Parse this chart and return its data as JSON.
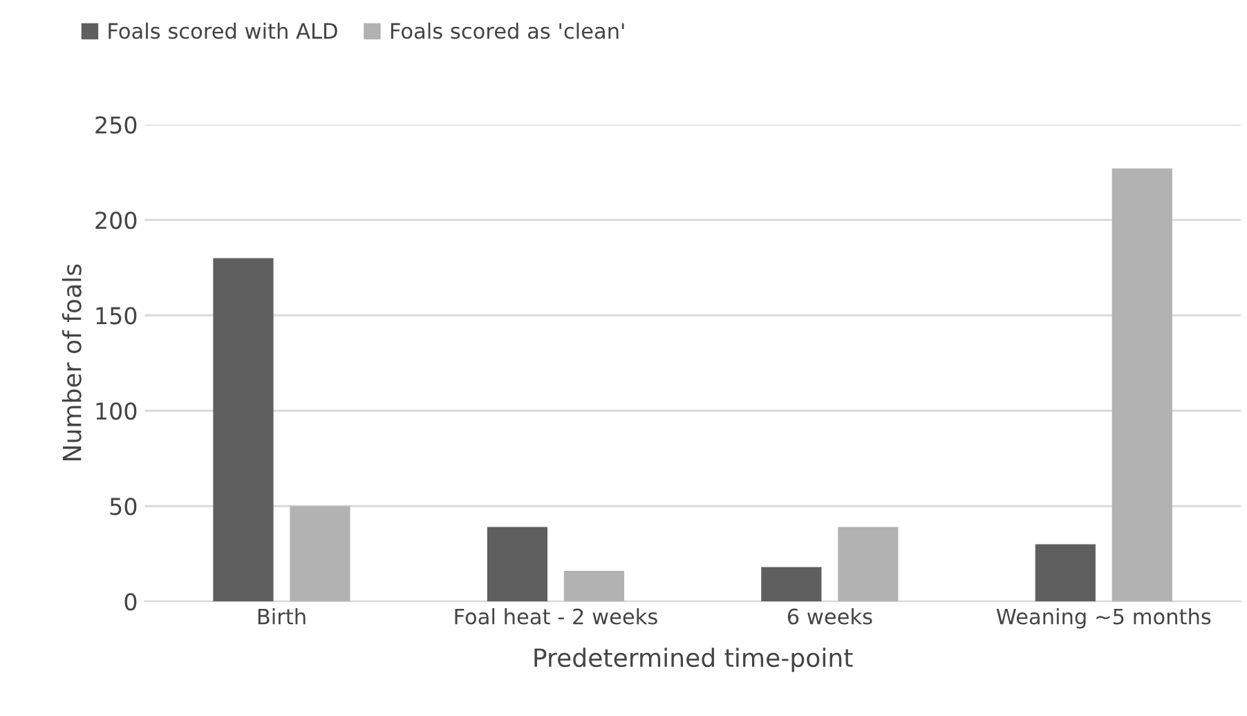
{
  "chart_data": {
    "type": "bar",
    "xlabel": "Predetermined time-point",
    "ylabel": "Number of foals",
    "categories": [
      "Birth",
      "Foal heat - 2 weeks",
      "6 weeks",
      "Weaning ~5 months"
    ],
    "series": [
      {
        "name": "Foals scored with ALD",
        "color": "#5f5f5f",
        "values": [
          180,
          39,
          18,
          30
        ]
      },
      {
        "name": "Foals scored as 'clean'",
        "color": "#b2b2b2",
        "values": [
          50,
          16,
          39,
          227
        ]
      }
    ],
    "ylim": [
      0,
      250
    ],
    "yticks": [
      0,
      50,
      100,
      150,
      200,
      250
    ],
    "grid": "y",
    "legend": "top left"
  }
}
